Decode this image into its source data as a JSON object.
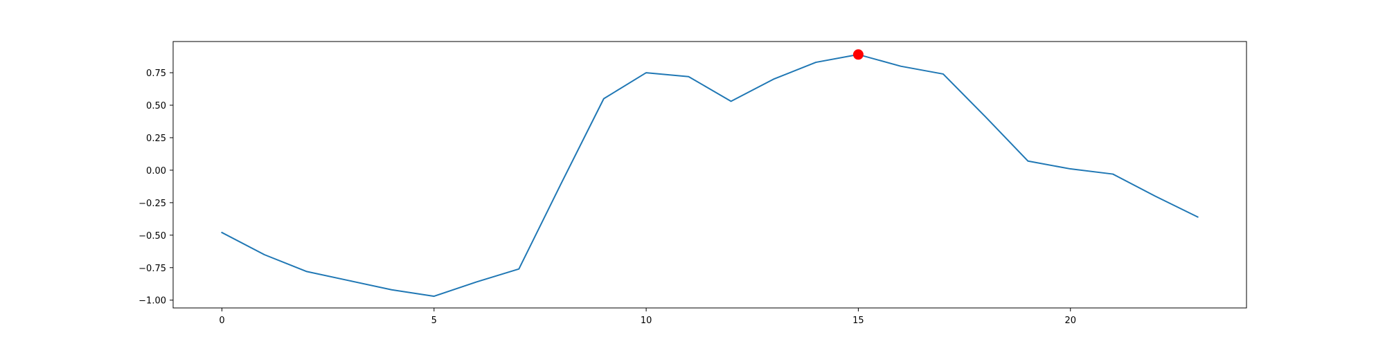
{
  "chart_data": {
    "type": "line",
    "title": "",
    "xlabel": "",
    "ylabel": "",
    "xlim": [
      -1.15,
      24.15
    ],
    "ylim": [
      -1.06,
      0.99
    ],
    "x_ticks": [
      0,
      5,
      10,
      15,
      20
    ],
    "x_tick_labels": [
      "0",
      "5",
      "10",
      "15",
      "20"
    ],
    "y_ticks": [
      -1.0,
      -0.75,
      -0.5,
      -0.25,
      0.0,
      0.25,
      0.5,
      0.75
    ],
    "y_tick_labels": [
      "−1.00",
      "−0.75",
      "−0.50",
      "−0.25",
      "0.00",
      "0.25",
      "0.50",
      "0.75"
    ],
    "grid": false,
    "series": [
      {
        "color": "#1f77b4",
        "x": [
          0,
          1,
          2,
          3,
          4,
          5,
          6,
          7,
          8,
          9,
          10,
          11,
          12,
          13,
          14,
          15,
          16,
          17,
          18,
          19,
          20,
          21,
          22,
          23
        ],
        "y": [
          -0.48,
          -0.65,
          -0.78,
          -0.85,
          -0.92,
          -0.97,
          -0.86,
          -0.76,
          -0.1,
          0.55,
          0.75,
          0.72,
          0.53,
          0.7,
          0.83,
          0.89,
          0.8,
          0.74,
          0.41,
          0.07,
          0.01,
          -0.03,
          -0.2,
          -0.36
        ]
      }
    ],
    "highlight_point": {
      "x": 15,
      "y": 0.89,
      "color": "#ff0000"
    }
  }
}
